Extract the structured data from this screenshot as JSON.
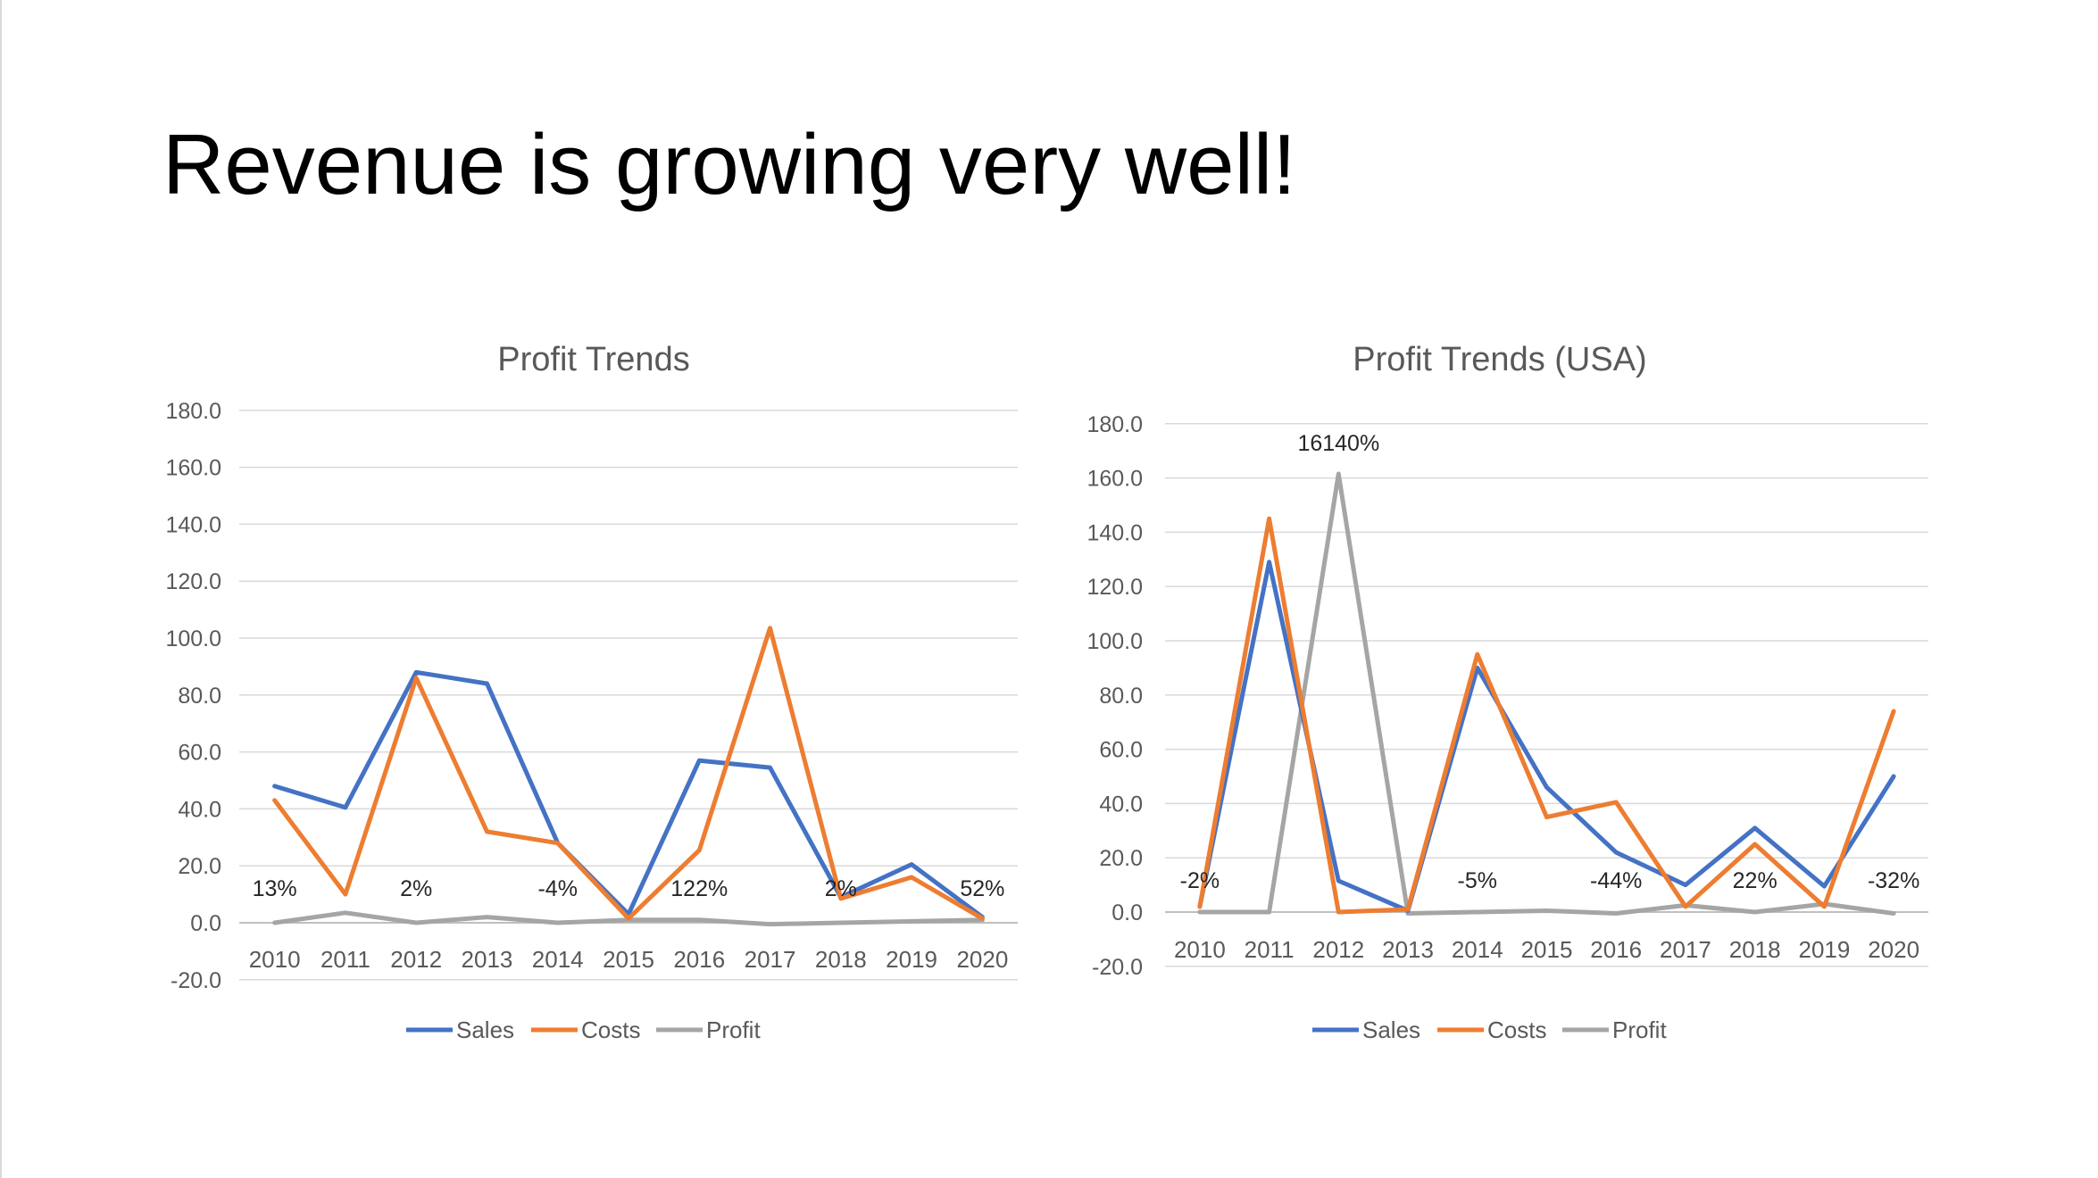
{
  "slide": {
    "title": "Revenue is growing very well!"
  },
  "colors": {
    "sales": "#4472C4",
    "costs": "#ED7D31",
    "profit": "#A5A5A5",
    "grid": "#D9D9D9",
    "axis": "#BFBFBF",
    "text": "#595959"
  },
  "chart_data": [
    {
      "type": "line",
      "title": "Profit Trends",
      "categories": [
        "2010",
        "2011",
        "2012",
        "2013",
        "2014",
        "2015",
        "2016",
        "2017",
        "2018",
        "2019",
        "2020"
      ],
      "ylim": [
        -20,
        180
      ],
      "yticks": [
        -20,
        0,
        20,
        40,
        60,
        80,
        100,
        120,
        140,
        160,
        180
      ],
      "ytick_labels": [
        "-20.0",
        "0.0",
        "20.0",
        "40.0",
        "60.0",
        "80.0",
        "100.0",
        "120.0",
        "140.0",
        "160.0",
        "180.0"
      ],
      "grid": true,
      "legend": "bottom",
      "series": [
        {
          "name": "Sales",
          "color": "#4472C4",
          "values": [
            48,
            40.5,
            88,
            84,
            28,
            3,
            57,
            54.5,
            9,
            20.5,
            2
          ]
        },
        {
          "name": "Costs",
          "color": "#ED7D31",
          "values": [
            43,
            10,
            86,
            32,
            28,
            1.5,
            25.5,
            103.5,
            8.5,
            16,
            1.5
          ]
        },
        {
          "name": "Profit",
          "color": "#A5A5A5",
          "values": [
            0,
            3.5,
            0,
            2,
            0,
            1,
            1,
            -0.5,
            0,
            0.5,
            1
          ]
        }
      ],
      "annotations": [
        {
          "category": "2010",
          "text": "13%"
        },
        {
          "category": "2012",
          "text": "2%"
        },
        {
          "category": "2014",
          "text": "-4%"
        },
        {
          "category": "2016",
          "text": "122%"
        },
        {
          "category": "2018",
          "text": "2%"
        },
        {
          "category": "2020",
          "text": "52%"
        }
      ]
    },
    {
      "type": "line",
      "title": "Profit Trends (USA)",
      "categories": [
        "2010",
        "2011",
        "2012",
        "2013",
        "2014",
        "2015",
        "2016",
        "2017",
        "2018",
        "2019",
        "2020"
      ],
      "ylim": [
        -20,
        180
      ],
      "yticks": [
        -20,
        0,
        20,
        40,
        60,
        80,
        100,
        120,
        140,
        160,
        180
      ],
      "ytick_labels": [
        "-20.0",
        "0.0",
        "20.0",
        "40.0",
        "60.0",
        "80.0",
        "100.0",
        "120.0",
        "140.0",
        "160.0",
        "180.0"
      ],
      "grid": true,
      "legend": "bottom",
      "series": [
        {
          "name": "Sales",
          "color": "#4472C4",
          "values": [
            2,
            129,
            11.5,
            0.5,
            90,
            46,
            22,
            10,
            31,
            9.5,
            50
          ]
        },
        {
          "name": "Costs",
          "color": "#ED7D31",
          "values": [
            2,
            145,
            0,
            1,
            95,
            35,
            40.5,
            2,
            25,
            2,
            74
          ]
        },
        {
          "name": "Profit",
          "color": "#A5A5A5",
          "values": [
            0,
            0,
            161.5,
            -0.5,
            0,
            0.5,
            -0.5,
            2.5,
            0,
            3,
            -0.5
          ]
        }
      ],
      "annotations": [
        {
          "category": "2010",
          "text": "-2%"
        },
        {
          "category": "2012",
          "text": "16140%"
        },
        {
          "category": "2014",
          "text": "-5%"
        },
        {
          "category": "2016",
          "text": "-44%"
        },
        {
          "category": "2018",
          "text": "22%"
        },
        {
          "category": "2020",
          "text": "-32%"
        }
      ]
    }
  ]
}
